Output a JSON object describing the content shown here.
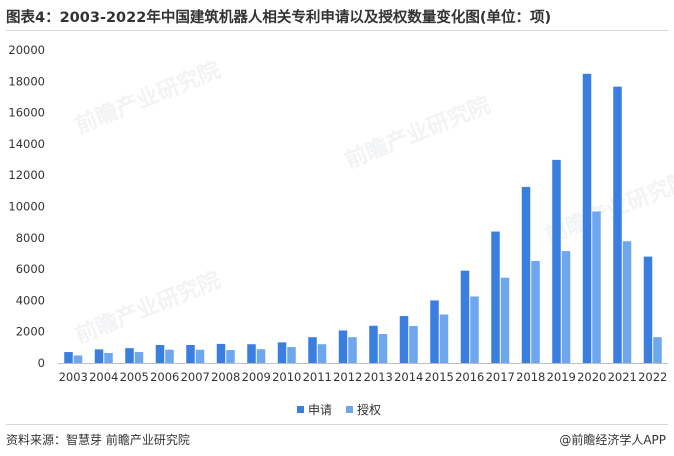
{
  "title": "图表4：2003-2022年中国建筑机器人相关专利申请以及授权数量变化图(单位：项)",
  "source": "资料来源：智慧芽 前瞻产业研究院",
  "brand": "@前瞻经济学人APP",
  "watermark": "前瞻产业研究院",
  "chart_data": {
    "type": "bar",
    "categories": [
      "2003",
      "2004",
      "2005",
      "2006",
      "2007",
      "2008",
      "2009",
      "2010",
      "2011",
      "2012",
      "2013",
      "2014",
      "2015",
      "2016",
      "2017",
      "2018",
      "2019",
      "2020",
      "2021",
      "2022"
    ],
    "series": [
      {
        "name": "申请",
        "color": "#3a7fe0",
        "values": [
          700,
          870,
          950,
          1150,
          1150,
          1220,
          1200,
          1320,
          1650,
          2080,
          2380,
          3000,
          4000,
          5900,
          8400,
          11250,
          12980,
          18480,
          17660,
          6800
        ]
      },
      {
        "name": "授权",
        "color": "#6ea7ee",
        "values": [
          480,
          640,
          700,
          850,
          850,
          830,
          880,
          1020,
          1200,
          1650,
          1850,
          2360,
          3100,
          4250,
          5450,
          6520,
          7150,
          9680,
          7780,
          1650
        ]
      }
    ],
    "yticks": [
      0,
      2000,
      4000,
      6000,
      8000,
      10000,
      12000,
      14000,
      16000,
      18000,
      20000
    ],
    "ylim": [
      0,
      20000
    ],
    "grid": false,
    "legend": "bottom-center"
  }
}
